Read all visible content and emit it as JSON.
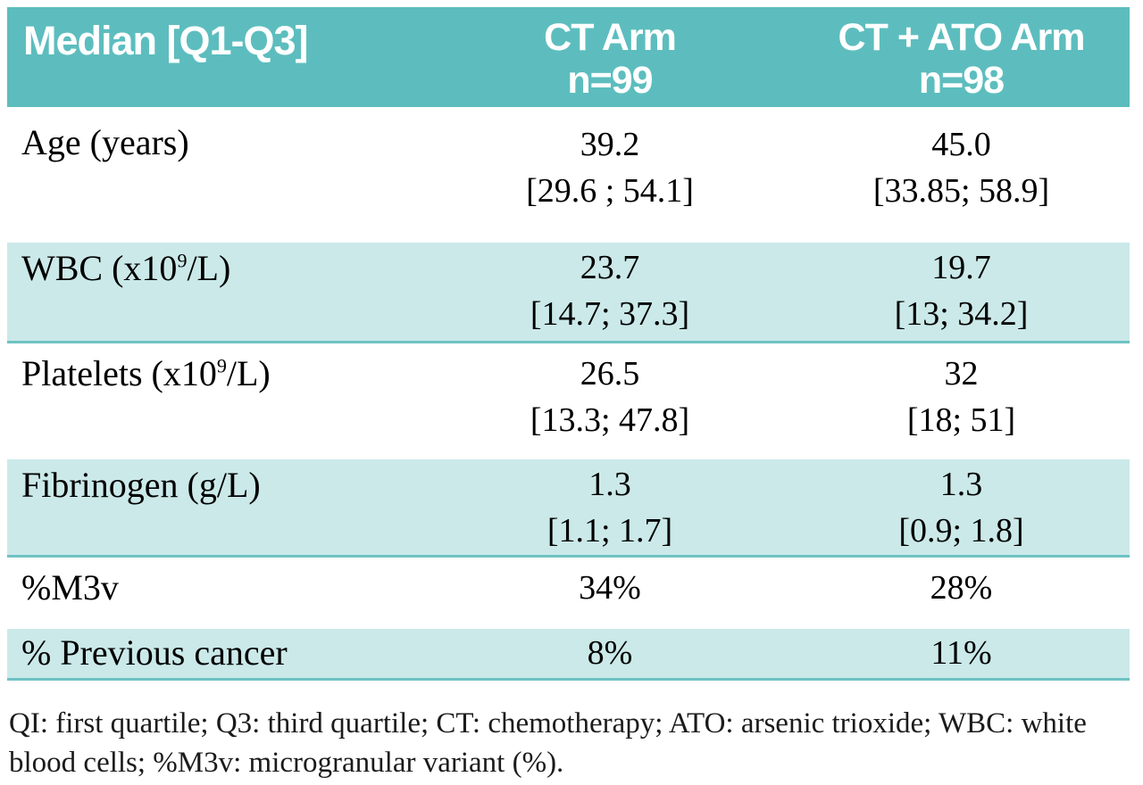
{
  "table": {
    "header": {
      "col1": "Median [Q1-Q3]",
      "col2_line1": "CT Arm",
      "col2_line2": "n=99",
      "col3_line1": "CT + ATO Arm",
      "col3_line2": "n=98"
    },
    "rows": [
      {
        "label_prefix": "Age (years)",
        "label_sup": "",
        "label_suffix": "",
        "ct_median": "39.2",
        "ct_iqr": "[29.6 ; 54.1]",
        "ato_median": "45.0",
        "ato_iqr": "[33.85; 58.9]",
        "shaded": false
      },
      {
        "label_prefix": "WBC (x10",
        "label_sup": "9",
        "label_suffix": "/L)",
        "ct_median": "23.7",
        "ct_iqr": "[14.7; 37.3]",
        "ato_median": "19.7",
        "ato_iqr": "[13; 34.2]",
        "shaded": true
      },
      {
        "label_prefix": "Platelets (x10",
        "label_sup": "9",
        "label_suffix": "/L)",
        "ct_median": "26.5",
        "ct_iqr": "[13.3; 47.8]",
        "ato_median": "32",
        "ato_iqr": "[18; 51]",
        "shaded": false
      },
      {
        "label_prefix": "Fibrinogen (g/L)",
        "label_sup": "",
        "label_suffix": "",
        "ct_median": "1.3",
        "ct_iqr": "[1.1; 1.7]",
        "ato_median": "1.3",
        "ato_iqr": "[0.9; 1.8]",
        "shaded": true
      },
      {
        "label_prefix": "%M3v",
        "label_sup": "",
        "label_suffix": "",
        "ct_median": "34%",
        "ct_iqr": "",
        "ato_median": "28%",
        "ato_iqr": "",
        "shaded": false
      },
      {
        "label_prefix": "% Previous cancer",
        "label_sup": "",
        "label_suffix": "",
        "ct_median": "8%",
        "ct_iqr": "",
        "ato_median": "11%",
        "ato_iqr": "",
        "shaded": true
      }
    ],
    "footnote": "QI: first quartile; Q3: third quartile; CT: chemotherapy; ATO: arsenic trioxide; WBC: white blood cells; %M3v:  microgranular variant (%)."
  },
  "colors": {
    "header_bg": "#5dbdbe",
    "header_text": "#ffffff",
    "shaded_row_bg": "#cbe9e9",
    "row_border": "#6fc2c3",
    "body_text": "#000000"
  }
}
